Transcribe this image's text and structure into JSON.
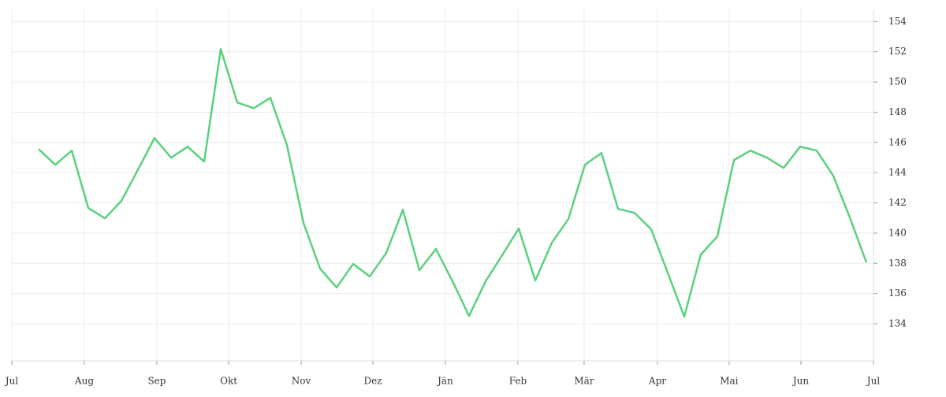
{
  "chart_data": {
    "type": "line",
    "series": [
      {
        "color": "#5ad17f",
        "values": [
          145.56,
          144.52,
          145.46,
          141.66,
          140.98,
          142.13,
          144.2,
          146.29,
          144.99,
          145.72,
          144.73,
          152.18,
          148.64,
          148.27,
          148.95,
          145.82,
          140.67,
          137.65,
          136.4,
          137.96,
          137.13,
          138.69,
          141.55,
          137.54,
          138.95,
          136.81,
          134.52,
          136.81,
          138.53,
          140.3,
          136.86,
          139.36,
          140.93,
          144.52,
          145.3,
          141.6,
          141.34,
          140.25,
          137.38,
          134.47,
          138.58,
          139.78,
          144.83,
          145.46,
          144.99,
          144.31,
          145.72,
          145.46,
          143.79,
          141.03,
          138.06
        ]
      }
    ],
    "xlim": [
      -1.62,
      50.43
    ],
    "xticks": [
      {
        "value": -1.62,
        "label": "Jul"
      },
      {
        "value": 2.76,
        "label": "Aug"
      },
      {
        "value": 7.14,
        "label": "Sep"
      },
      {
        "value": 11.48,
        "label": "Okt"
      },
      {
        "value": 15.86,
        "label": "Nov"
      },
      {
        "value": 20.19,
        "label": "Dez"
      },
      {
        "value": 24.57,
        "label": "Jän"
      },
      {
        "value": 28.95,
        "label": "Feb"
      },
      {
        "value": 32.95,
        "label": "Mär"
      },
      {
        "value": 37.38,
        "label": "Apr"
      },
      {
        "value": 41.71,
        "label": "Mai"
      },
      {
        "value": 46.05,
        "label": "Jun"
      },
      {
        "value": 50.43,
        "label": "Jul"
      }
    ],
    "ylim": [
      131.55,
      154.8
    ],
    "yticks": [
      134,
      136,
      138,
      140,
      142,
      144,
      146,
      148,
      150,
      152,
      154
    ],
    "grid": true
  }
}
